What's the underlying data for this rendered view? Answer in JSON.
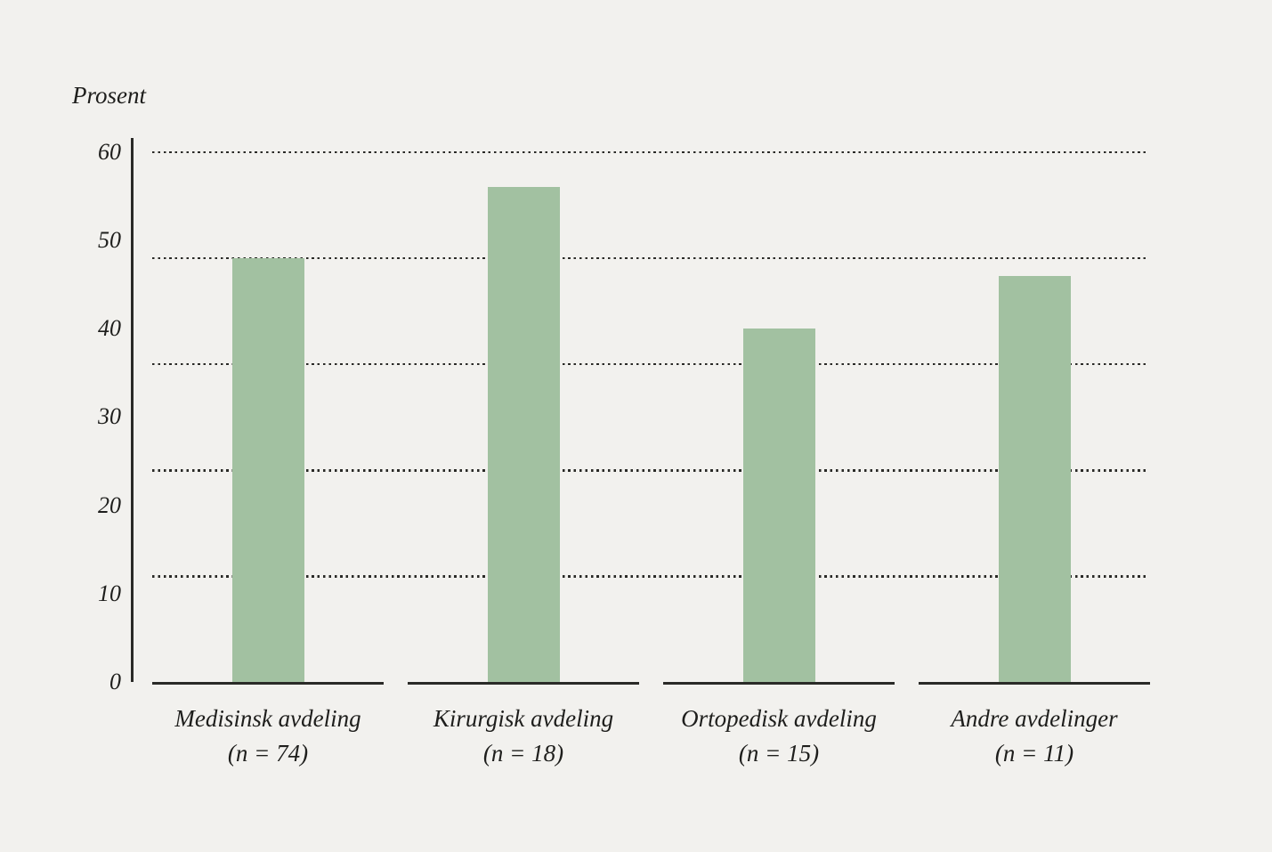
{
  "chart_data": {
    "type": "bar",
    "title": "Prosent",
    "ylabel": "Prosent",
    "xlabel": "",
    "categories": [
      "Medisinsk avdeling",
      "Kirurgisk avdeling",
      "Ortopedisk avdeling",
      "Andre avdelinger"
    ],
    "category_sublabels": [
      "(n = 74)",
      "(n = 18)",
      "(n = 15)",
      "(n = 11)"
    ],
    "n_values": [
      74,
      18,
      15,
      11
    ],
    "values": [
      48,
      56,
      40,
      46
    ],
    "y_ticks": [
      0,
      10,
      20,
      30,
      40,
      50,
      60
    ],
    "gridline_values": [
      12,
      24,
      36,
      48,
      60
    ],
    "ylim": [
      0,
      60
    ],
    "grid": "dotted-horizontal",
    "legend": "none",
    "axis_style": "separate baseline segment under each category",
    "colors": {
      "bar": "#a2c1a1",
      "background": "#f2f1ee",
      "axis": "#2a2a27",
      "text": "#1e1e1c"
    }
  }
}
